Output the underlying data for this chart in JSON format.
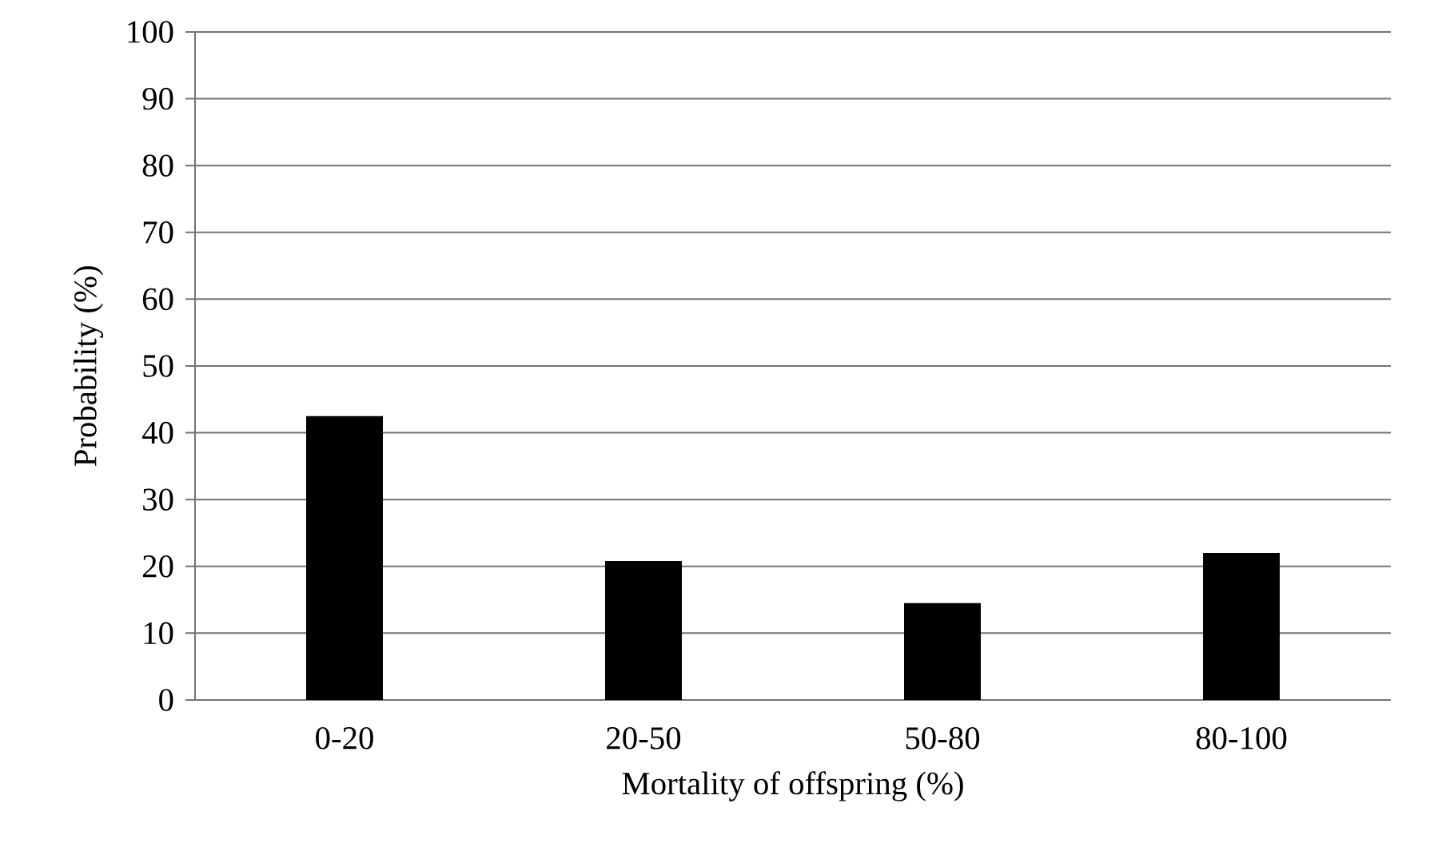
{
  "chart_data": {
    "type": "bar",
    "xlabel": "Mortality of offspring (%)",
    "ylabel": "Probability (%)",
    "categories": [
      "0-20",
      "20-50",
      "50-80",
      "80-100"
    ],
    "values": [
      42.5,
      20.8,
      14.5,
      22.0
    ],
    "color": "#000000",
    "ylim": [
      0,
      100
    ],
    "yticks": [
      0,
      10,
      20,
      30,
      40,
      50,
      60,
      70,
      80,
      90,
      100
    ],
    "grid": "y"
  }
}
